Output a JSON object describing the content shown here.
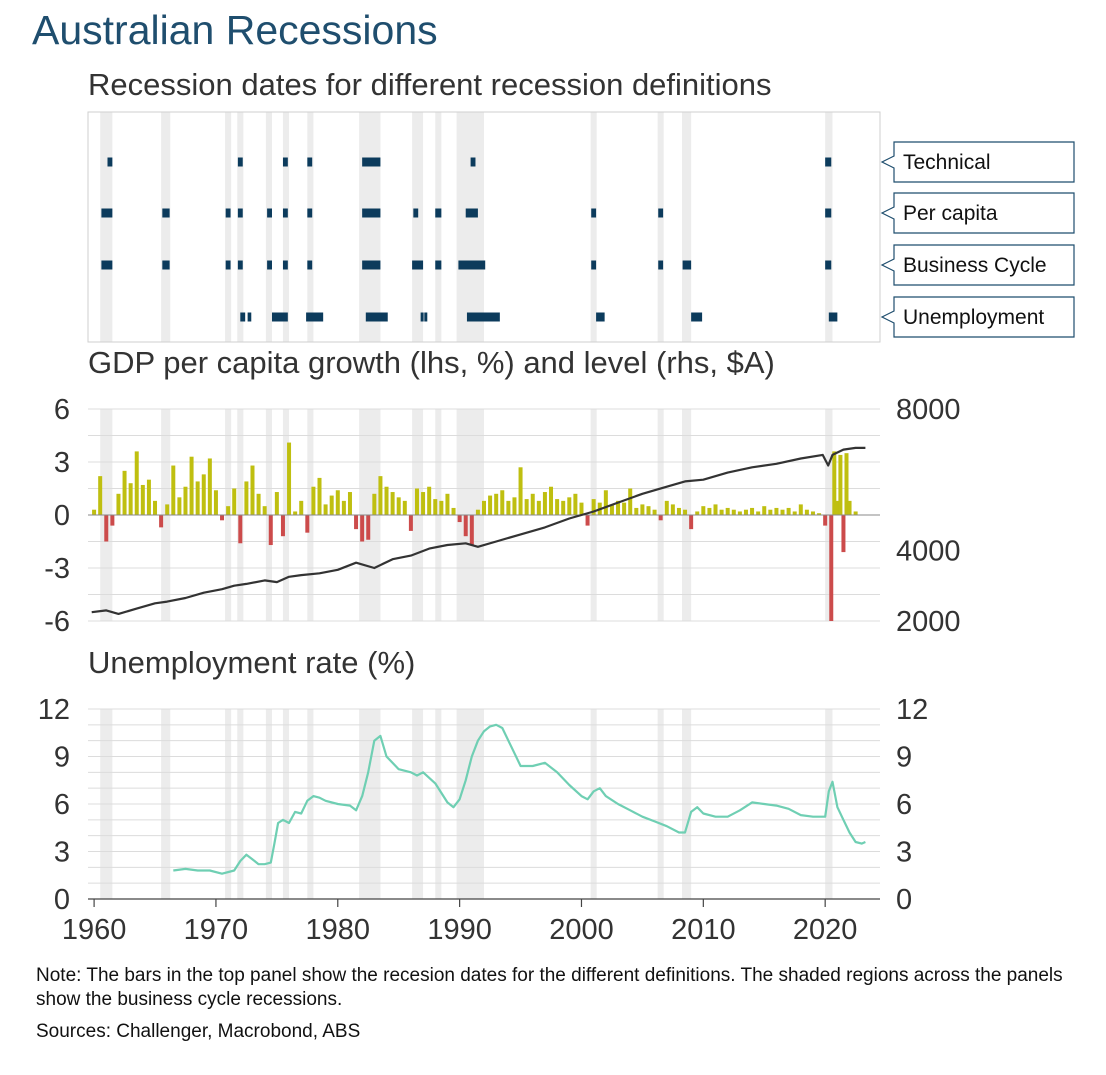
{
  "title": "Australian Recessions",
  "colors": {
    "shade": "#ececec",
    "recession_bar": "#0c3b5c",
    "growth_pos": "#bfbf10",
    "growth_neg": "#cc4b4b",
    "level_line": "#333333",
    "unemployment_line": "#6fcfb3",
    "title": "#1f4e6e"
  },
  "note": "Note: The bars in the top panel show the recesion dates for the different definitions. The shaded regions across the panels show the business cycle recessions.",
  "sources": "Sources: Challenger, Macrobond, ABS",
  "chart_data": [
    {
      "type": "timeline",
      "title": "Recession dates for different recession definitions",
      "xlim": [
        1959.5,
        2024.5
      ],
      "shaded_business_cycle_recessions": [
        [
          1960.5,
          1961.5
        ],
        [
          1965.5,
          1966.25
        ],
        [
          1970.75,
          1971.25
        ],
        [
          1971.75,
          1972.25
        ],
        [
          1974.1,
          1974.6
        ],
        [
          1975.5,
          1976.0
        ],
        [
          1977.5,
          1978.0
        ],
        [
          1981.75,
          1983.5
        ],
        [
          1986.1,
          1987.0
        ],
        [
          1988.0,
          1988.5
        ],
        [
          1989.75,
          1992.0
        ],
        [
          2000.75,
          2001.25
        ],
        [
          2006.25,
          2006.75
        ],
        [
          2008.25,
          2009.0
        ],
        [
          2020.0,
          2020.6
        ]
      ],
      "series": [
        {
          "name": "Technical",
          "periods": [
            [
              1961.1,
              1961.5
            ],
            [
              1971.8,
              1972.2
            ],
            [
              1975.5,
              1975.9
            ],
            [
              1977.5,
              1977.9
            ],
            [
              1982.0,
              1983.5
            ],
            [
              1990.9,
              1991.3
            ],
            [
              2020.0,
              2020.5
            ]
          ]
        },
        {
          "name": "Per capita",
          "periods": [
            [
              1960.6,
              1961.5
            ],
            [
              1965.6,
              1966.2
            ],
            [
              1970.8,
              1971.2
            ],
            [
              1971.8,
              1972.2
            ],
            [
              1974.2,
              1974.6
            ],
            [
              1975.5,
              1975.9
            ],
            [
              1977.5,
              1977.9
            ],
            [
              1982.0,
              1983.5
            ],
            [
              1986.2,
              1986.6
            ],
            [
              1988.0,
              1988.5
            ],
            [
              1990.5,
              1991.5
            ],
            [
              2000.8,
              2001.2
            ],
            [
              2006.3,
              2006.7
            ],
            [
              2020.0,
              2020.5
            ]
          ]
        },
        {
          "name": "Business Cycle",
          "periods": [
            [
              1960.6,
              1961.5
            ],
            [
              1965.6,
              1966.2
            ],
            [
              1970.8,
              1971.2
            ],
            [
              1971.8,
              1972.2
            ],
            [
              1974.2,
              1974.6
            ],
            [
              1975.5,
              1975.9
            ],
            [
              1977.5,
              1977.9
            ],
            [
              1982.0,
              1983.5
            ],
            [
              1986.1,
              1987.0
            ],
            [
              1988.0,
              1988.5
            ],
            [
              1989.9,
              1992.1
            ],
            [
              2000.8,
              2001.2
            ],
            [
              2006.3,
              2006.7
            ],
            [
              2008.3,
              2009.0
            ],
            [
              2020.0,
              2020.5
            ]
          ]
        },
        {
          "name": "Unemployment",
          "periods": [
            [
              1972.0,
              1972.4
            ],
            [
              1972.6,
              1972.9
            ],
            [
              1974.6,
              1975.9
            ],
            [
              1977.4,
              1978.8
            ],
            [
              1982.3,
              1984.1
            ],
            [
              1986.8,
              1986.9
            ],
            [
              1987.1,
              1987.2
            ],
            [
              1990.6,
              1993.3
            ],
            [
              2001.2,
              2001.9
            ],
            [
              2009.0,
              2009.9
            ],
            [
              2020.3,
              2021.0
            ]
          ]
        }
      ]
    },
    {
      "type": "bar+line",
      "title": "GDP per capita growth (lhs, %) and level (rhs, $A)",
      "ylim_left": [
        -6,
        6
      ],
      "yticks_left": [
        "6",
        "3",
        "0",
        "-3",
        "-6"
      ],
      "ylim_right": [
        2000,
        8000
      ],
      "yticks_right": [
        "8000",
        "",
        "4000",
        "",
        "2000"
      ],
      "series": [
        {
          "name": "GDP per capita growth",
          "axis": "left",
          "type": "bar",
          "x": [
            1960.0,
            1960.5,
            1961.0,
            1961.5,
            1962.0,
            1962.5,
            1963.0,
            1963.5,
            1964.0,
            1964.5,
            1965.0,
            1965.5,
            1966.0,
            1966.5,
            1967.0,
            1967.5,
            1968.0,
            1968.5,
            1969.0,
            1969.5,
            1970.0,
            1970.5,
            1971.0,
            1971.5,
            1972.0,
            1972.5,
            1973.0,
            1973.5,
            1974.0,
            1974.5,
            1975.0,
            1975.5,
            1976.0,
            1976.5,
            1977.0,
            1977.5,
            1978.0,
            1978.5,
            1979.0,
            1979.5,
            1980.0,
            1980.5,
            1981.0,
            1981.5,
            1982.0,
            1982.5,
            1983.0,
            1983.5,
            1984.0,
            1984.5,
            1985.0,
            1985.5,
            1986.0,
            1986.5,
            1987.0,
            1987.5,
            1988.0,
            1988.5,
            1989.0,
            1989.5,
            1990.0,
            1990.5,
            1991.0,
            1991.5,
            1992.0,
            1992.5,
            1993.0,
            1993.5,
            1994.0,
            1994.5,
            1995.0,
            1995.5,
            1996.0,
            1996.5,
            1997.0,
            1997.5,
            1998.0,
            1998.5,
            1999.0,
            1999.5,
            2000.0,
            2000.5,
            2001.0,
            2001.5,
            2002.0,
            2002.5,
            2003.0,
            2003.5,
            2004.0,
            2004.5,
            2005.0,
            2005.5,
            2006.0,
            2006.5,
            2007.0,
            2007.5,
            2008.0,
            2008.5,
            2009.0,
            2009.5,
            2010.0,
            2010.5,
            2011.0,
            2011.5,
            2012.0,
            2012.5,
            2013.0,
            2013.5,
            2014.0,
            2014.5,
            2015.0,
            2015.5,
            2016.0,
            2016.5,
            2017.0,
            2017.5,
            2018.0,
            2018.5,
            2019.0,
            2019.5,
            2020.0,
            2020.5,
            2020.75,
            2021.0,
            2021.25,
            2021.5,
            2021.75,
            2022.0,
            2022.5
          ],
          "values": [
            0.3,
            2.2,
            -1.5,
            -0.6,
            1.2,
            2.5,
            1.8,
            3.6,
            1.7,
            2.0,
            0.8,
            -0.7,
            0.6,
            2.8,
            1.0,
            1.6,
            3.3,
            1.9,
            2.3,
            3.2,
            1.4,
            -0.3,
            0.5,
            1.5,
            -1.6,
            1.9,
            2.8,
            1.2,
            0.5,
            -1.7,
            1.3,
            -1.2,
            4.1,
            0.2,
            0.8,
            -1.0,
            1.6,
            2.1,
            0.6,
            1.1,
            1.4,
            0.8,
            1.3,
            -0.8,
            -1.5,
            -1.4,
            1.2,
            2.2,
            1.6,
            1.3,
            1.0,
            0.8,
            -0.9,
            1.5,
            1.3,
            1.6,
            0.9,
            0.8,
            1.2,
            0.4,
            -0.4,
            -1.2,
            -1.7,
            0.3,
            0.8,
            1.1,
            1.2,
            1.4,
            0.8,
            1.0,
            2.7,
            0.9,
            1.2,
            0.8,
            1.3,
            1.6,
            0.9,
            0.8,
            1.0,
            1.2,
            0.7,
            -0.6,
            0.9,
            0.7,
            1.4,
            0.6,
            0.8,
            0.7,
            1.5,
            0.4,
            0.6,
            0.5,
            0.3,
            -0.3,
            0.8,
            0.6,
            0.4,
            0.3,
            -0.8,
            0.2,
            0.5,
            0.4,
            0.6,
            0.3,
            0.4,
            0.3,
            0.2,
            0.3,
            0.4,
            0.2,
            0.5,
            0.3,
            0.4,
            0.3,
            0.4,
            0.2,
            0.6,
            0.3,
            0.2,
            0.1,
            -0.6,
            -6.0,
            3.6,
            0.8,
            3.4,
            -2.1,
            3.5,
            0.8,
            0.2
          ],
          "color": "growth"
        },
        {
          "name": "GDP per capita level",
          "axis": "right",
          "type": "line",
          "x": [
            1959.8,
            1961.0,
            1962.0,
            1963.5,
            1965.0,
            1966.0,
            1967.5,
            1969.0,
            1970.5,
            1971.5,
            1972.5,
            1974.0,
            1975.0,
            1976.0,
            1977.0,
            1978.5,
            1980.0,
            1981.5,
            1983.0,
            1984.5,
            1986.0,
            1987.5,
            1989.0,
            1990.5,
            1991.5,
            1993.0,
            1995.0,
            1997.0,
            1999.0,
            2001.0,
            2003.0,
            2005.0,
            2007.0,
            2008.5,
            2010.0,
            2012.0,
            2014.0,
            2016.0,
            2018.0,
            2019.8,
            2020.25,
            2020.6,
            2021.5,
            2022.5,
            2023.3
          ],
          "values": [
            2250,
            2300,
            2200,
            2350,
            2500,
            2550,
            2650,
            2800,
            2900,
            3000,
            3050,
            3150,
            3100,
            3250,
            3300,
            3350,
            3450,
            3650,
            3500,
            3750,
            3850,
            4050,
            4150,
            4200,
            4100,
            4250,
            4450,
            4650,
            4900,
            5100,
            5350,
            5600,
            5800,
            5950,
            6000,
            6200,
            6350,
            6450,
            6600,
            6700,
            6400,
            6700,
            6850,
            6900,
            6900
          ]
        }
      ]
    },
    {
      "type": "line",
      "title": "Unemployment rate (%)",
      "ylim": [
        0,
        12
      ],
      "yticks": [
        "12",
        "9",
        "6",
        "3",
        "0"
      ],
      "xticks": [
        "1960",
        "1970",
        "1980",
        "1990",
        "2000",
        "2010",
        "2020"
      ],
      "series": [
        {
          "name": "Unemployment rate",
          "x": [
            1966.5,
            1967.5,
            1968.5,
            1969.5,
            1970.5,
            1971.5,
            1972.0,
            1972.5,
            1973.0,
            1973.5,
            1974.0,
            1974.5,
            1974.8,
            1975.1,
            1975.5,
            1976.0,
            1976.5,
            1977.0,
            1977.5,
            1978.0,
            1978.5,
            1979.0,
            1980.0,
            1981.0,
            1981.5,
            1982.0,
            1982.5,
            1983.0,
            1983.5,
            1984.0,
            1985.0,
            1986.0,
            1986.5,
            1987.0,
            1988.0,
            1989.0,
            1989.5,
            1990.0,
            1990.5,
            1991.0,
            1991.5,
            1992.0,
            1992.5,
            1993.0,
            1993.5,
            1994.0,
            1994.5,
            1995.0,
            1996.0,
            1997.0,
            1998.0,
            1999.0,
            2000.0,
            2000.5,
            2001.0,
            2001.5,
            2002.0,
            2003.0,
            2004.0,
            2005.0,
            2006.0,
            2007.0,
            2008.0,
            2008.5,
            2009.0,
            2009.5,
            2010.0,
            2011.0,
            2012.0,
            2013.0,
            2014.0,
            2015.0,
            2016.0,
            2017.0,
            2018.0,
            2019.0,
            2020.0,
            2020.3,
            2020.6,
            2021.0,
            2021.5,
            2022.0,
            2022.5,
            2023.0,
            2023.3
          ],
          "values": [
            1.8,
            1.9,
            1.8,
            1.8,
            1.6,
            1.8,
            2.4,
            2.8,
            2.5,
            2.2,
            2.2,
            2.3,
            3.5,
            4.8,
            5.0,
            4.8,
            5.5,
            5.4,
            6.2,
            6.5,
            6.4,
            6.2,
            6.0,
            5.9,
            5.6,
            6.5,
            8.0,
            10.0,
            10.3,
            9.0,
            8.2,
            8.0,
            7.8,
            8.0,
            7.3,
            6.1,
            5.8,
            6.3,
            7.5,
            9.0,
            10.0,
            10.6,
            10.9,
            11.0,
            10.8,
            10.0,
            9.2,
            8.4,
            8.4,
            8.6,
            8.0,
            7.2,
            6.5,
            6.3,
            6.8,
            7.0,
            6.5,
            6.0,
            5.6,
            5.2,
            4.9,
            4.6,
            4.2,
            4.2,
            5.5,
            5.8,
            5.4,
            5.2,
            5.2,
            5.6,
            6.1,
            6.0,
            5.9,
            5.7,
            5.3,
            5.2,
            5.2,
            6.8,
            7.4,
            5.8,
            5.0,
            4.2,
            3.6,
            3.5,
            3.6
          ]
        }
      ]
    }
  ]
}
